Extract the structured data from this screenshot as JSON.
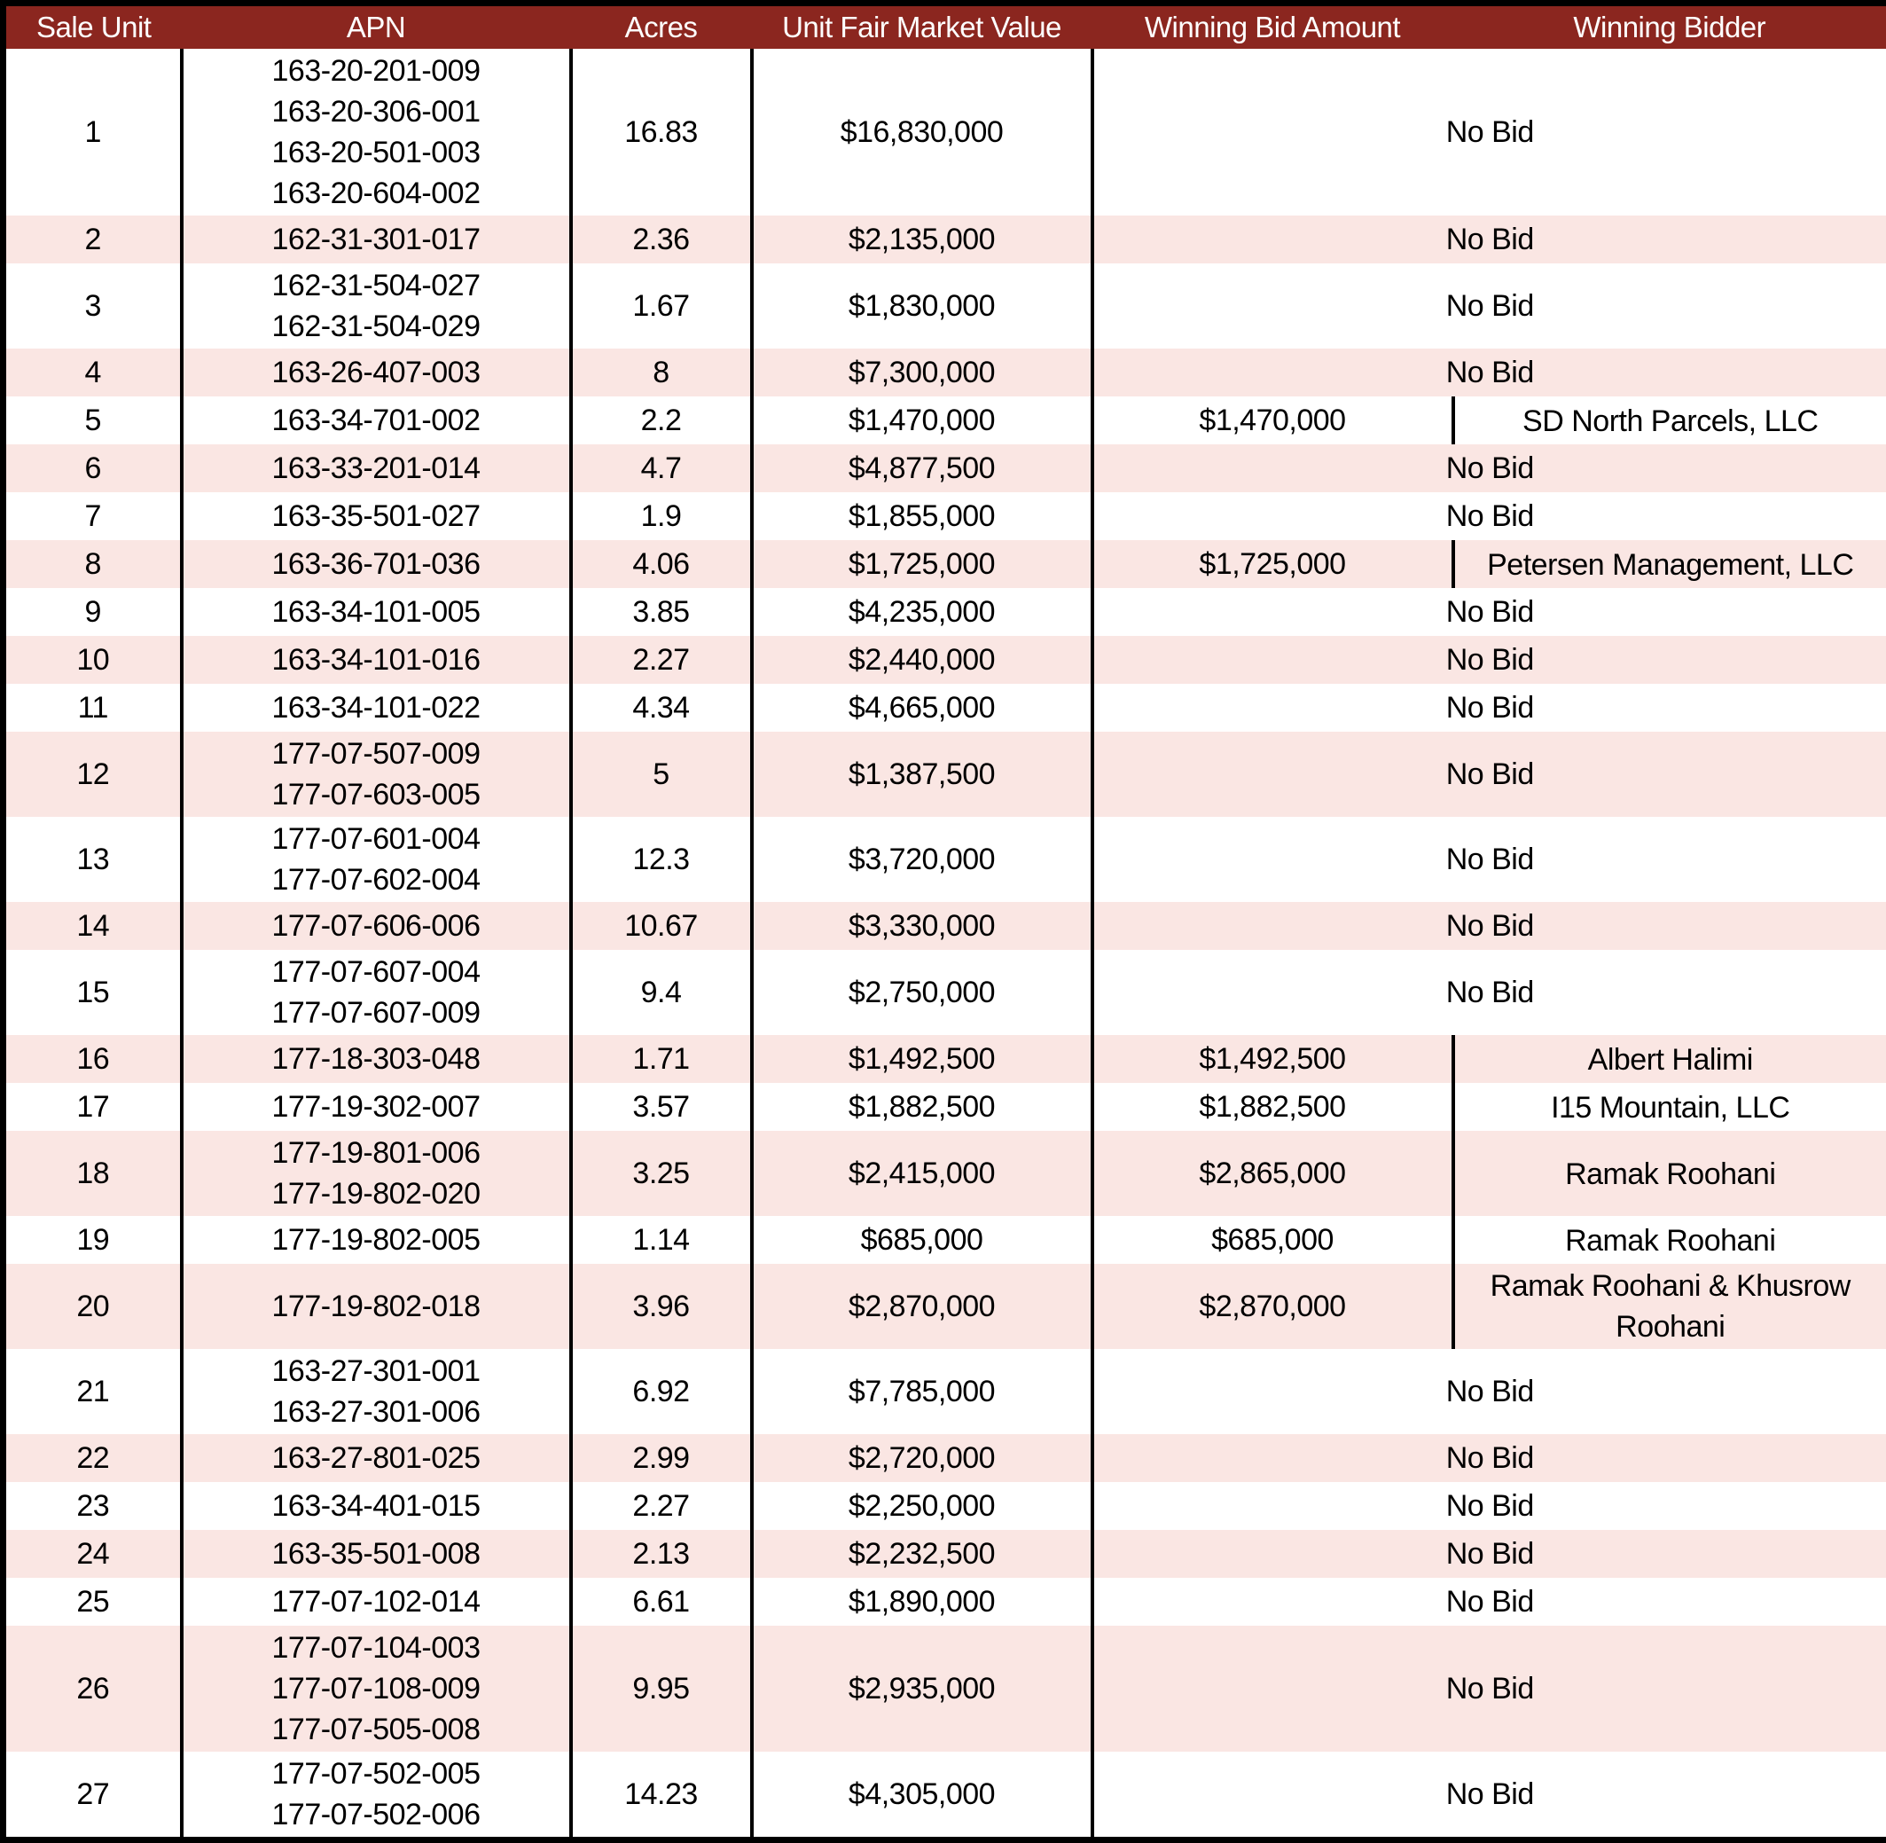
{
  "table": {
    "colors": {
      "header_bg": "#8B261F",
      "header_text": "#FFFFFF",
      "band_bg": "#FAE6E3",
      "border": "#000000"
    },
    "columns": [
      "Sale Unit",
      "APN",
      "Acres",
      "Unit Fair Market Value",
      "Winning Bid Amount",
      "Winning Bidder"
    ],
    "no_bid_label": "No Bid",
    "rows": [
      {
        "unit": "1",
        "apns": [
          "163-20-201-009",
          "163-20-306-001",
          "163-20-501-003",
          "163-20-604-002"
        ],
        "acres": "16.83",
        "fmv": "$16,830,000",
        "bid": null,
        "bidder": null
      },
      {
        "unit": "2",
        "apns": [
          "162-31-301-017"
        ],
        "acres": "2.36",
        "fmv": "$2,135,000",
        "bid": null,
        "bidder": null
      },
      {
        "unit": "3",
        "apns": [
          "162-31-504-027",
          "162-31-504-029"
        ],
        "acres": "1.67",
        "fmv": "$1,830,000",
        "bid": null,
        "bidder": null
      },
      {
        "unit": "4",
        "apns": [
          "163-26-407-003"
        ],
        "acres": "8",
        "fmv": "$7,300,000",
        "bid": null,
        "bidder": null
      },
      {
        "unit": "5",
        "apns": [
          "163-34-701-002"
        ],
        "acres": "2.2",
        "fmv": "$1,470,000",
        "bid": "$1,470,000",
        "bidder": "SD North Parcels, LLC"
      },
      {
        "unit": "6",
        "apns": [
          "163-33-201-014"
        ],
        "acres": "4.7",
        "fmv": "$4,877,500",
        "bid": null,
        "bidder": null
      },
      {
        "unit": "7",
        "apns": [
          "163-35-501-027"
        ],
        "acres": "1.9",
        "fmv": "$1,855,000",
        "bid": null,
        "bidder": null
      },
      {
        "unit": "8",
        "apns": [
          "163-36-701-036"
        ],
        "acres": "4.06",
        "fmv": "$1,725,000",
        "bid": "$1,725,000",
        "bidder": "Petersen Management, LLC"
      },
      {
        "unit": "9",
        "apns": [
          "163-34-101-005"
        ],
        "acres": "3.85",
        "fmv": "$4,235,000",
        "bid": null,
        "bidder": null
      },
      {
        "unit": "10",
        "apns": [
          "163-34-101-016"
        ],
        "acres": "2.27",
        "fmv": "$2,440,000",
        "bid": null,
        "bidder": null
      },
      {
        "unit": "11",
        "apns": [
          "163-34-101-022"
        ],
        "acres": "4.34",
        "fmv": "$4,665,000",
        "bid": null,
        "bidder": null
      },
      {
        "unit": "12",
        "apns": [
          "177-07-507-009",
          "177-07-603-005"
        ],
        "acres": "5",
        "fmv": "$1,387,500",
        "bid": null,
        "bidder": null
      },
      {
        "unit": "13",
        "apns": [
          "177-07-601-004",
          "177-07-602-004"
        ],
        "acres": "12.3",
        "fmv": "$3,720,000",
        "bid": null,
        "bidder": null
      },
      {
        "unit": "14",
        "apns": [
          "177-07-606-006"
        ],
        "acres": "10.67",
        "fmv": "$3,330,000",
        "bid": null,
        "bidder": null
      },
      {
        "unit": "15",
        "apns": [
          "177-07-607-004",
          "177-07-607-009"
        ],
        "acres": "9.4",
        "fmv": "$2,750,000",
        "bid": null,
        "bidder": null
      },
      {
        "unit": "16",
        "apns": [
          "177-18-303-048"
        ],
        "acres": "1.71",
        "fmv": "$1,492,500",
        "bid": "$1,492,500",
        "bidder": "Albert Halimi"
      },
      {
        "unit": "17",
        "apns": [
          "177-19-302-007"
        ],
        "acres": "3.57",
        "fmv": "$1,882,500",
        "bid": "$1,882,500",
        "bidder": "I15 Mountain, LLC"
      },
      {
        "unit": "18",
        "apns": [
          "177-19-801-006",
          "177-19-802-020"
        ],
        "acres": "3.25",
        "fmv": "$2,415,000",
        "bid": "$2,865,000",
        "bidder": "Ramak Roohani"
      },
      {
        "unit": "19",
        "apns": [
          "177-19-802-005"
        ],
        "acres": "1.14",
        "fmv": "$685,000",
        "bid": "$685,000",
        "bidder": "Ramak Roohani"
      },
      {
        "unit": "20",
        "apns": [
          "177-19-802-018"
        ],
        "acres": "3.96",
        "fmv": "$2,870,000",
        "bid": "$2,870,000",
        "bidder": "Ramak Roohani & Khusrow Roohani"
      },
      {
        "unit": "21",
        "apns": [
          "163-27-301-001",
          "163-27-301-006"
        ],
        "acres": "6.92",
        "fmv": "$7,785,000",
        "bid": null,
        "bidder": null
      },
      {
        "unit": "22",
        "apns": [
          "163-27-801-025"
        ],
        "acres": "2.99",
        "fmv": "$2,720,000",
        "bid": null,
        "bidder": null
      },
      {
        "unit": "23",
        "apns": [
          "163-34-401-015"
        ],
        "acres": "2.27",
        "fmv": "$2,250,000",
        "bid": null,
        "bidder": null
      },
      {
        "unit": "24",
        "apns": [
          "163-35-501-008"
        ],
        "acres": "2.13",
        "fmv": "$2,232,500",
        "bid": null,
        "bidder": null
      },
      {
        "unit": "25",
        "apns": [
          "177-07-102-014"
        ],
        "acres": "6.61",
        "fmv": "$1,890,000",
        "bid": null,
        "bidder": null
      },
      {
        "unit": "26",
        "apns": [
          "177-07-104-003",
          "177-07-108-009",
          "177-07-505-008"
        ],
        "acres": "9.95",
        "fmv": "$2,935,000",
        "bid": null,
        "bidder": null
      },
      {
        "unit": "27",
        "apns": [
          "177-07-502-005",
          "177-07-502-006"
        ],
        "acres": "14.23",
        "fmv": "$4,305,000",
        "bid": null,
        "bidder": null
      }
    ]
  }
}
